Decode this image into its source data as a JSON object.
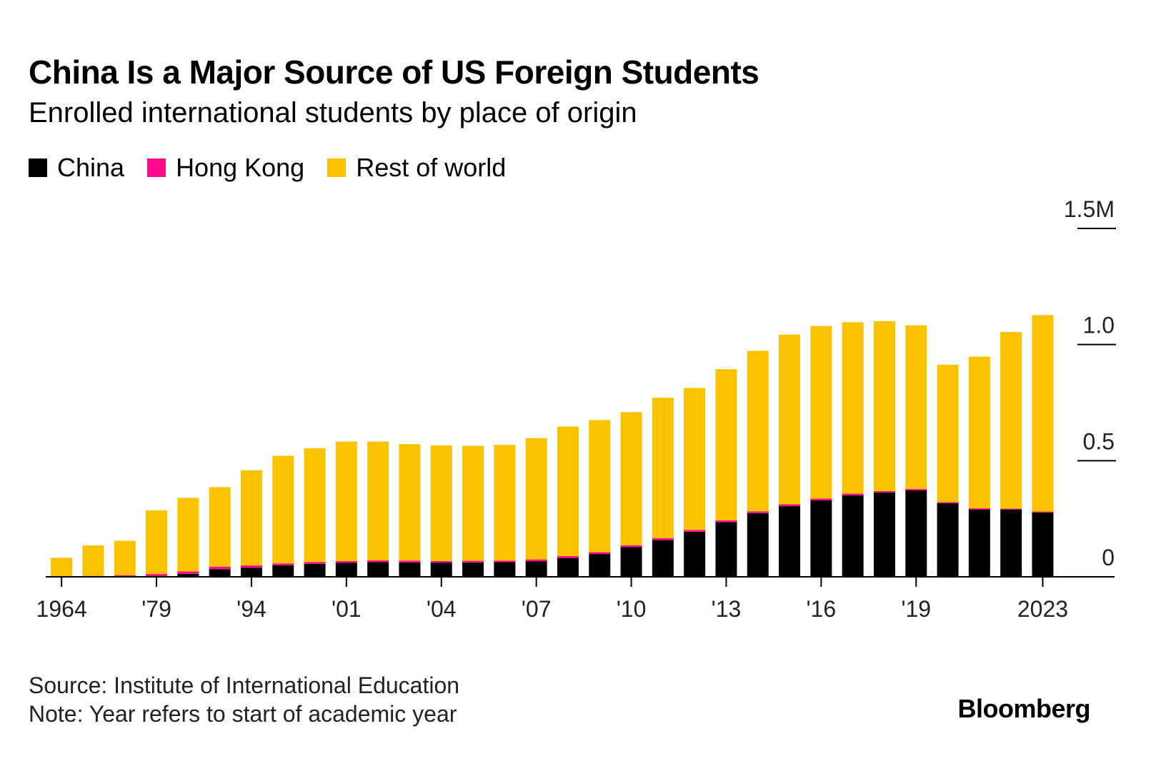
{
  "colors": {
    "china": "#000000",
    "hong_kong": "#ff0a8c",
    "rest_of_world": "#fbc200",
    "axis": "#000000"
  },
  "chart_data": {
    "type": "bar",
    "stacked": true,
    "title": "China Is a Major Source of US Foreign Students",
    "subtitle": "Enrolled international students by place of origin",
    "legend": [
      {
        "label": "China",
        "color": "#000000"
      },
      {
        "label": "Hong Kong",
        "color": "#ff0a8c"
      },
      {
        "label": "Rest of world",
        "color": "#fbc200"
      }
    ],
    "x_tick_labels": [
      "1964",
      "'79",
      "'94",
      "'01",
      "'04",
      "'07",
      "'10",
      "'13",
      "'16",
      "'19",
      "2023"
    ],
    "x_tick_positions": [
      0,
      3,
      6,
      9,
      12,
      15,
      18,
      21,
      24,
      27,
      31
    ],
    "y_ticks": [
      {
        "value": 0,
        "label": "0"
      },
      {
        "value": 0.5,
        "label": "0.5"
      },
      {
        "value": 1.0,
        "label": "1.0"
      },
      {
        "value": 1.5,
        "label": "1.5M"
      }
    ],
    "ylim": [
      0,
      1.5
    ],
    "y_unit": "millions of students",
    "bar_count": 32,
    "series": [
      {
        "name": "China",
        "values": [
          0.0,
          0.0,
          0.001,
          0.002,
          0.013,
          0.033,
          0.039,
          0.05,
          0.056,
          0.06,
          0.063,
          0.062,
          0.061,
          0.062,
          0.063,
          0.067,
          0.081,
          0.098,
          0.128,
          0.158,
          0.194,
          0.235,
          0.274,
          0.304,
          0.329,
          0.351,
          0.363,
          0.372,
          0.317,
          0.29,
          0.29,
          0.277
        ]
      },
      {
        "name": "Hong Kong",
        "values": [
          0.003,
          0.004,
          0.006,
          0.01,
          0.01,
          0.011,
          0.01,
          0.008,
          0.008,
          0.008,
          0.008,
          0.008,
          0.007,
          0.007,
          0.007,
          0.008,
          0.008,
          0.008,
          0.008,
          0.008,
          0.008,
          0.008,
          0.008,
          0.008,
          0.008,
          0.007,
          0.006,
          0.006,
          0.005,
          0.005,
          0.004,
          0.004
        ]
      },
      {
        "name": "Rest of world",
        "values": [
          0.079,
          0.131,
          0.148,
          0.274,
          0.317,
          0.342,
          0.409,
          0.463,
          0.49,
          0.514,
          0.511,
          0.501,
          0.498,
          0.495,
          0.498,
          0.522,
          0.558,
          0.569,
          0.573,
          0.605,
          0.611,
          0.651,
          0.691,
          0.731,
          0.743,
          0.738,
          0.732,
          0.705,
          0.591,
          0.653,
          0.76,
          0.846
        ]
      }
    ]
  },
  "footer": {
    "source": "Source: Institute of International Education",
    "note": "Note: Year refers to start of academic year"
  },
  "brand": "Bloomberg"
}
